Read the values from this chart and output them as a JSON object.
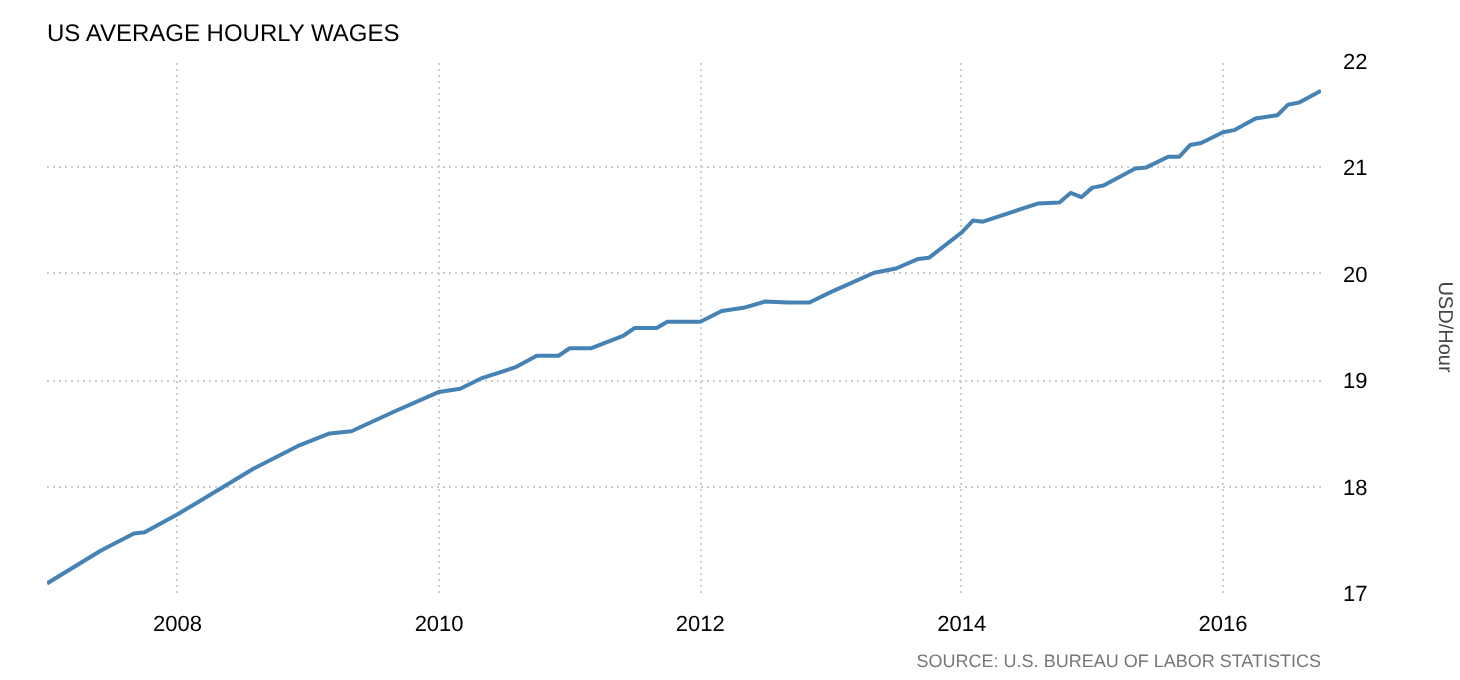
{
  "chart_data": {
    "type": "line",
    "title": "US AVERAGE HOURLY WAGES",
    "ylabel": "USD/Hour",
    "annotations": [
      "SOURCE: U.S. BUREAU OF LABOR STATISTICS"
    ],
    "x": [
      "2007-01",
      "2007-06",
      "2007-09",
      "2007-10",
      "2008-01",
      "2008-03",
      "2008-08",
      "2008-12",
      "2009-03",
      "2009-05",
      "2009-09",
      "2010-01",
      "2010-03",
      "2010-05",
      "2010-08",
      "2010-10",
      "2010-12",
      "2011-01",
      "2011-03",
      "2011-06",
      "2011-07",
      "2011-09",
      "2011-10",
      "2012-01",
      "2012-03",
      "2012-05",
      "2012-07",
      "2012-09",
      "2012-11",
      "2013-01",
      "2013-05",
      "2013-07",
      "2013-09",
      "2013-10",
      "2014-01",
      "2014-02",
      "2014-03",
      "2014-08",
      "2014-10",
      "2014-11",
      "2014-12",
      "2015-01",
      "2015-02",
      "2015-05",
      "2015-06",
      "2015-08",
      "2015-09",
      "2015-10",
      "2015-11",
      "2016-01",
      "2016-02",
      "2016-04",
      "2016-06",
      "2016-07",
      "2016-08",
      "2016-10"
    ],
    "series": [
      {
        "color": "#4682b4",
        "values": [
          17.09,
          17.4,
          17.56,
          17.57,
          17.74,
          17.86,
          18.17,
          18.38,
          18.5,
          18.52,
          18.71,
          18.89,
          18.92,
          19.02,
          19.12,
          19.23,
          19.23,
          19.3,
          19.3,
          19.42,
          19.49,
          19.49,
          19.55,
          19.55,
          19.65,
          19.68,
          19.74,
          19.73,
          19.73,
          19.83,
          20.01,
          20.05,
          20.14,
          20.15,
          20.39,
          20.5,
          20.49,
          20.66,
          20.67,
          20.76,
          20.72,
          20.81,
          20.83,
          20.99,
          21.0,
          21.1,
          21.1,
          21.21,
          21.23,
          21.33,
          21.35,
          21.46,
          21.49,
          21.59,
          21.61,
          21.72
        ]
      }
    ],
    "xlim": [
      "2007-01",
      "2016-10"
    ],
    "xticks": [
      "2008",
      "2010",
      "2012",
      "2014",
      "2016"
    ],
    "ylim": [
      17,
      22
    ],
    "yticks": [
      17,
      18,
      19,
      20,
      21,
      22
    ],
    "grid": true,
    "marker": "none",
    "line_style": "solid"
  }
}
